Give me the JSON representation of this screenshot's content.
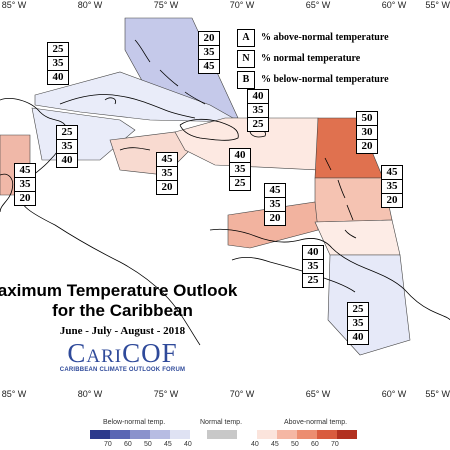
{
  "longitude_labels": [
    "85° W",
    "80° W",
    "75° W",
    "70° W",
    "65° W",
    "60° W",
    "55° W"
  ],
  "legend": [
    {
      "key": "A",
      "text": "% above-normal temperature"
    },
    {
      "key": "N",
      "text": "% normal temperature"
    },
    {
      "key": "B",
      "text": "% below-normal temperature"
    }
  ],
  "regions": [
    {
      "name": "bahamas",
      "values": [
        "20",
        "35",
        "45"
      ],
      "fill": "#c5c9ea"
    },
    {
      "name": "cuba",
      "values": [
        "25",
        "35",
        "40"
      ],
      "fill": "#e9ecf9"
    },
    {
      "name": "cayman-jamaica-west",
      "values": [
        "25",
        "35",
        "40"
      ],
      "fill": "#e9ecf9"
    },
    {
      "name": "central-america",
      "values": [
        "45",
        "35",
        "20"
      ],
      "fill": "#f0b8a8"
    },
    {
      "name": "jamaica",
      "values": [
        "45",
        "35",
        "20"
      ],
      "fill": "#f8dad0"
    },
    {
      "name": "hispaniola",
      "values": [
        "40",
        "35",
        "25"
      ],
      "fill": "#fde9e2"
    },
    {
      "name": "turks-caicos",
      "values": [
        "40",
        "35",
        "25"
      ],
      "fill": "#fde9e2"
    },
    {
      "name": "lesser-antilles-north",
      "values": [
        "50",
        "30",
        "20"
      ],
      "fill": "#e0714f"
    },
    {
      "name": "lesser-antilles-south",
      "values": [
        "45",
        "35",
        "20"
      ],
      "fill": "#f5c3b2"
    },
    {
      "name": "abc-islands",
      "values": [
        "45",
        "35",
        "20"
      ],
      "fill": "#f2b39f"
    },
    {
      "name": "trinidad",
      "values": [
        "40",
        "35",
        "25"
      ],
      "fill": "#fdece6"
    },
    {
      "name": "guianas",
      "values": [
        "25",
        "35",
        "40"
      ],
      "fill": "#e6e9f8"
    }
  ],
  "title": {
    "line1": "Maximum Temperature Outlook",
    "line2": "for the Caribbean",
    "dates": "June - July - August - 2018",
    "logo": "CariCOF",
    "logo_sub": "CARIBBEAN CLIMATE OUTLOOK FORUM"
  },
  "colorbar": {
    "below_title": "Below-normal temp.",
    "normal_title": "Normal temp.",
    "above_title": "Above-normal temp.",
    "below_ticks": [
      "70",
      "60",
      "50",
      "45",
      "40"
    ],
    "normal_ticks": [],
    "above_ticks": [
      "40",
      "45",
      "50",
      "60",
      "70"
    ],
    "below_colors": [
      "#2c3a8c",
      "#5a66b4",
      "#8a92cc",
      "#b7bce2",
      "#dfe2f3"
    ],
    "normal_color": "#c8c8c8",
    "above_colors": [
      "#fbe4dc",
      "#f5b7a4",
      "#ec8d70",
      "#d95b3e",
      "#b2301f"
    ]
  }
}
